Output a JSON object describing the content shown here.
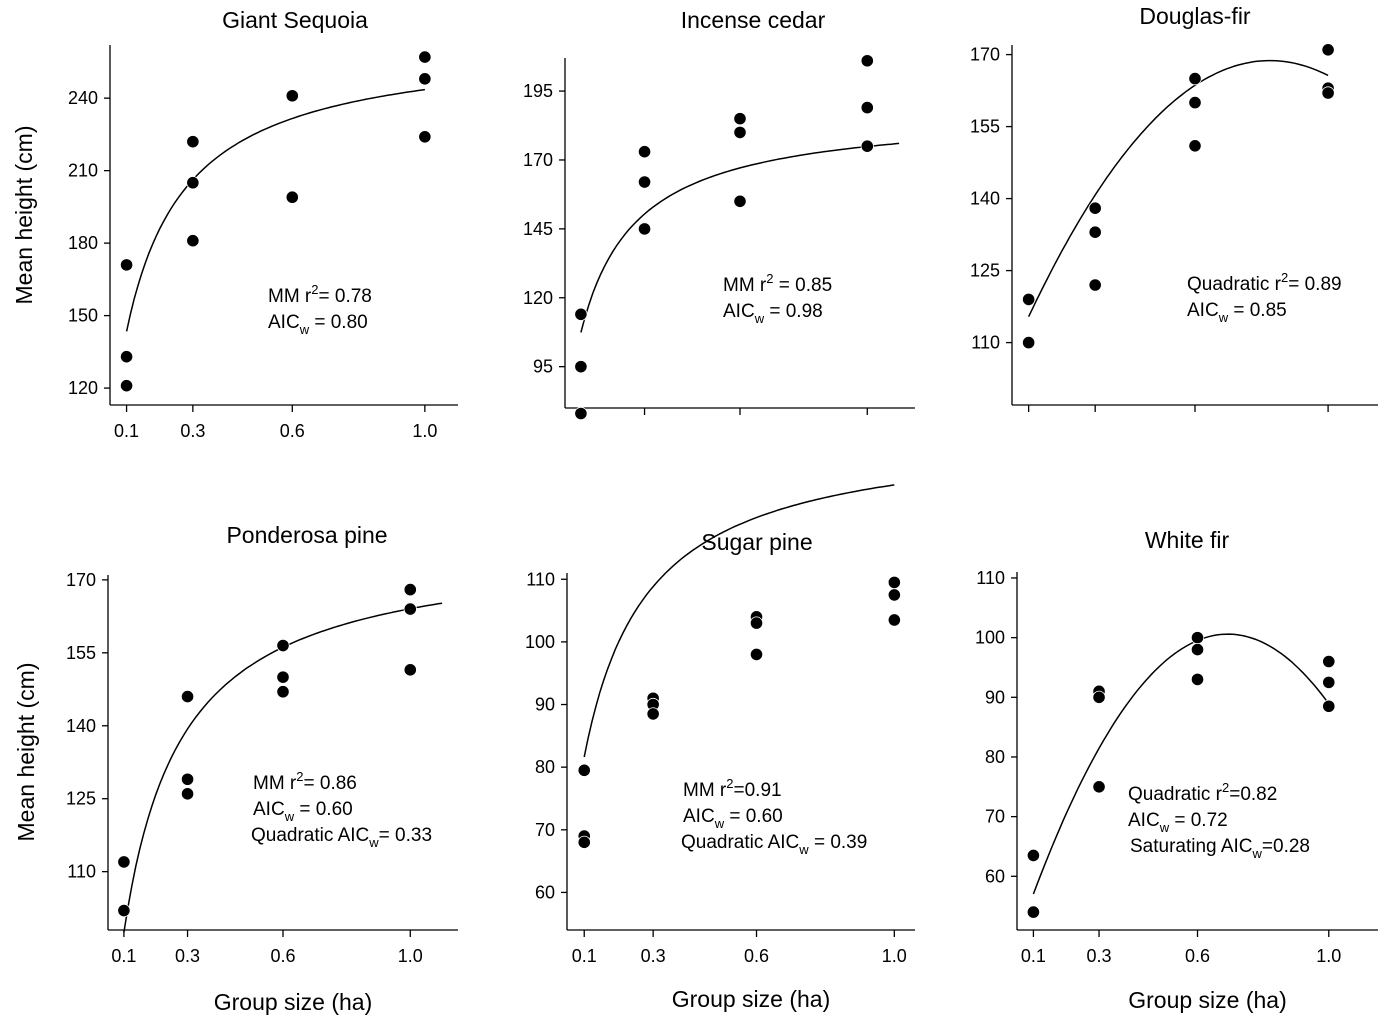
{
  "chart_data": [
    {
      "type": "scatter",
      "title": "Giant Sequoia",
      "ylabel": "Mean height (cm)",
      "xlabel": "",
      "x_ticks": [
        "0.1",
        "0.3",
        "0.6",
        "1.0"
      ],
      "y_ticks": [
        "120",
        "150",
        "180",
        "210",
        "240"
      ],
      "ylim": [
        113,
        262
      ],
      "xlim": [
        0.05,
        1.1
      ],
      "points": [
        {
          "x": 0.1,
          "y": 171
        },
        {
          "x": 0.1,
          "y": 133
        },
        {
          "x": 0.1,
          "y": 121
        },
        {
          "x": 0.3,
          "y": 222
        },
        {
          "x": 0.3,
          "y": 205
        },
        {
          "x": 0.3,
          "y": 181
        },
        {
          "x": 0.6,
          "y": 241
        },
        {
          "x": 0.6,
          "y": 199
        },
        {
          "x": 1.0,
          "y": 257
        },
        {
          "x": 1.0,
          "y": 248
        },
        {
          "x": 1.0,
          "y": 224
        }
      ],
      "fit": {
        "model": "MM",
        "params": {
          "a": 264,
          "b": 0.084
        },
        "x_range": [
          0.1,
          1.0
        ]
      },
      "annotation": {
        "line1": "MM r",
        "line1_sup": "2",
        "line1_rest": "= 0.78",
        "line2": "AIC",
        "line2_sub": "w",
        "line2_rest": " = 0.80"
      }
    },
    {
      "type": "scatter",
      "title": "Incense cedar",
      "ylabel": "",
      "xlabel": "",
      "x_ticks": [
        "",
        "",
        "",
        ""
      ],
      "y_ticks": [
        "95",
        "120",
        "145",
        "170",
        "195"
      ],
      "ylim": [
        80,
        207
      ],
      "xlim": [
        0.05,
        1.15
      ],
      "points": [
        {
          "x": 0.1,
          "y": 114
        },
        {
          "x": 0.1,
          "y": 95
        },
        {
          "x": 0.1,
          "y": 78
        },
        {
          "x": 0.3,
          "y": 173
        },
        {
          "x": 0.3,
          "y": 162
        },
        {
          "x": 0.3,
          "y": 145
        },
        {
          "x": 0.6,
          "y": 185
        },
        {
          "x": 0.6,
          "y": 180
        },
        {
          "x": 0.6,
          "y": 155
        },
        {
          "x": 1.0,
          "y": 206
        },
        {
          "x": 1.0,
          "y": 189
        },
        {
          "x": 1.0,
          "y": 175
        }
      ],
      "fit": {
        "model": "MM",
        "params": {
          "a": 188,
          "b": 0.075
        },
        "x_range": [
          0.1,
          1.1
        ]
      },
      "annotation": {
        "line1": "MM r",
        "line1_sup": "2",
        "line1_rest": " = 0.85",
        "line2": "AIC",
        "line2_sub": "w",
        "line2_rest": " = 0.98"
      }
    },
    {
      "type": "scatter",
      "title": "Douglas-fir",
      "ylabel": "",
      "xlabel": "",
      "x_ticks": [
        "",
        "",
        "",
        ""
      ],
      "y_ticks": [
        "110",
        "125",
        "140",
        "155",
        "170"
      ],
      "ylim": [
        97,
        172
      ],
      "xlim": [
        0.05,
        1.15
      ],
      "points": [
        {
          "x": 0.1,
          "y": 119
        },
        {
          "x": 0.1,
          "y": 110
        },
        {
          "x": 0.3,
          "y": 138
        },
        {
          "x": 0.3,
          "y": 133
        },
        {
          "x": 0.3,
          "y": 122
        },
        {
          "x": 0.6,
          "y": 165
        },
        {
          "x": 0.6,
          "y": 160
        },
        {
          "x": 0.6,
          "y": 151
        },
        {
          "x": 1.0,
          "y": 171
        },
        {
          "x": 1.0,
          "y": 163
        },
        {
          "x": 1.0,
          "y": 162
        }
      ],
      "fit": {
        "model": "Quadratic",
        "params": {
          "c0": 99.66,
          "c1": 167.4,
          "c2": -101.4
        },
        "x_range": [
          0.1,
          1.0
        ]
      },
      "annotation": {
        "line1": "Quadratic r",
        "line1_sup": "2",
        "line1_rest": "= 0.89",
        "line2": "AIC",
        "line2_sub": "w",
        "line2_rest": " = 0.85"
      }
    },
    {
      "type": "scatter",
      "title": "Ponderosa pine",
      "ylabel": "Mean height (cm)",
      "xlabel": "Group size (ha)",
      "x_ticks": [
        "0.1",
        "0.3",
        "0.6",
        "1.0"
      ],
      "y_ticks": [
        "110",
        "125",
        "140",
        "155",
        "170"
      ],
      "ylim": [
        98,
        171
      ],
      "xlim": [
        0.05,
        1.15
      ],
      "points": [
        {
          "x": 0.1,
          "y": 112
        },
        {
          "x": 0.1,
          "y": 102
        },
        {
          "x": 0.3,
          "y": 146
        },
        {
          "x": 0.3,
          "y": 129
        },
        {
          "x": 0.3,
          "y": 126
        },
        {
          "x": 0.6,
          "y": 156.5
        },
        {
          "x": 0.6,
          "y": 150
        },
        {
          "x": 0.6,
          "y": 147
        },
        {
          "x": 1.0,
          "y": 168
        },
        {
          "x": 1.0,
          "y": 164
        },
        {
          "x": 1.0,
          "y": 151.5
        }
      ],
      "fit": {
        "model": "MM",
        "params": {
          "a": 176.6,
          "b": 0.083,
          "offset": 1.0
        },
        "x_range": [
          0.1,
          1.1
        ]
      },
      "annotation": {
        "line1": "MM r",
        "line1_sup": "2",
        "line1_rest": "= 0.86",
        "line2": "AIC",
        "line2_sub": "w",
        "line2_rest": " = 0.60",
        "line3": "Quadratic AIC",
        "line3_sub": "w",
        "line3_rest": "= 0.33"
      }
    },
    {
      "type": "scatter",
      "title": "Sugar pine",
      "ylabel": "",
      "xlabel": "Group size (ha)",
      "x_ticks": [
        "0.1",
        "0.3",
        "0.6",
        "1.0"
      ],
      "y_ticks": [
        "60",
        "70",
        "80",
        "90",
        "100",
        "110"
      ],
      "ylim": [
        54,
        111
      ],
      "xlim": [
        0.05,
        1.06
      ],
      "points": [
        {
          "x": 0.1,
          "y": 79.5
        },
        {
          "x": 0.1,
          "y": 69
        },
        {
          "x": 0.1,
          "y": 68
        },
        {
          "x": 0.3,
          "y": 91
        },
        {
          "x": 0.3,
          "y": 90
        },
        {
          "x": 0.3,
          "y": 88.5
        },
        {
          "x": 0.6,
          "y": 104
        },
        {
          "x": 0.6,
          "y": 103
        },
        {
          "x": 0.6,
          "y": 98
        },
        {
          "x": 1.0,
          "y": 109.5
        },
        {
          "x": 1.0,
          "y": 107.5
        },
        {
          "x": 1.0,
          "y": 103.5
        }
      ],
      "fit": {
        "model": "MM",
        "params": {
          "a": 114,
          "b": 0.085,
          "offset": 20
        },
        "x_range": [
          0.1,
          1.0
        ]
      },
      "annotation": {
        "line1": "MM  r",
        "line1_sup": "2",
        "line1_rest": "=0.91",
        "line2": "AIC",
        "line2_sub": "w",
        "line2_rest": " = 0.60",
        "line3": "Quadratic AIC",
        "line3_sub": "w",
        "line3_rest": " = 0.39"
      }
    },
    {
      "type": "scatter",
      "title": "White fir",
      "ylabel": "",
      "xlabel": "Group size (ha)",
      "x_ticks": [
        "0.1",
        "0.3",
        "0.6",
        "1.0"
      ],
      "y_ticks": [
        "60",
        "70",
        "80",
        "90",
        "100",
        "110"
      ],
      "ylim": [
        51,
        111
      ],
      "xlim": [
        0.05,
        1.15
      ],
      "points": [
        {
          "x": 0.1,
          "y": 63.5
        },
        {
          "x": 0.1,
          "y": 54
        },
        {
          "x": 0.3,
          "y": 91
        },
        {
          "x": 0.3,
          "y": 90
        },
        {
          "x": 0.3,
          "y": 75
        },
        {
          "x": 0.6,
          "y": 100
        },
        {
          "x": 0.6,
          "y": 98
        },
        {
          "x": 0.6,
          "y": 93
        },
        {
          "x": 1.0,
          "y": 96
        },
        {
          "x": 1.0,
          "y": 92.5
        },
        {
          "x": 1.0,
          "y": 88.5
        }
      ],
      "fit": {
        "model": "Quadratic",
        "params": {
          "c0": 41.1,
          "c1": 171.7,
          "c2": -123.9
        },
        "x_range": [
          0.1,
          1.0
        ]
      },
      "annotation": {
        "line1": "Quadratic r",
        "line1_sup": "2",
        "line1_rest": "=0.82",
        "line2": "AIC",
        "line2_sub": "w",
        "line2_rest": " = 0.72",
        "line3": "Saturating AIC",
        "line3_sub": "w",
        "line3_rest": "=0.28"
      }
    }
  ]
}
